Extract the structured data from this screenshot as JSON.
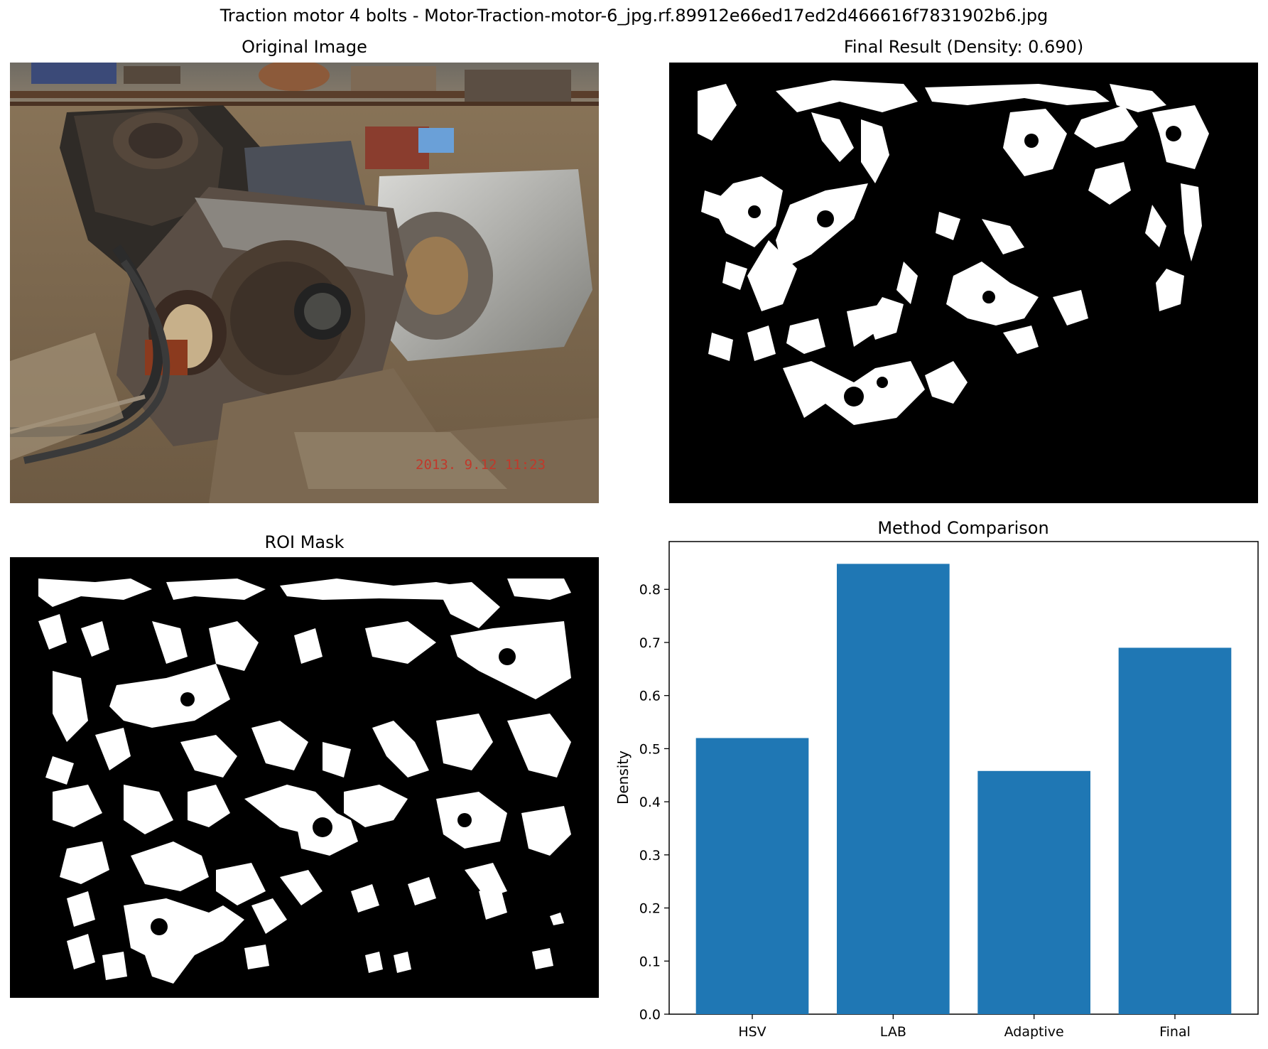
{
  "figure": {
    "suptitle": "Traction motor 4 bolts - Motor-Traction-motor-6_jpg.rf.89912e66ed17ed2d466616f7831902b6.jpg"
  },
  "panels": {
    "original": {
      "title": "Original Image",
      "timestamp": "2013. 9.12  11:23"
    },
    "final": {
      "title": "Final Result (Density: 0.690)"
    },
    "roi": {
      "title": "ROI Mask"
    },
    "comparison": {
      "title": "Method Comparison"
    }
  },
  "colors": {
    "bar": "#1f77b4",
    "mask_bg": "#000000",
    "mask_fg": "#ffffff",
    "timestamp": "#c0392b"
  },
  "chart_data": {
    "type": "bar",
    "title": "Method Comparison",
    "categories": [
      "HSV",
      "LAB",
      "Adaptive",
      "Final"
    ],
    "values": [
      0.52,
      0.848,
      0.458,
      0.69
    ],
    "xlabel": "",
    "ylabel": "Density",
    "ylim": [
      0,
      0.89
    ],
    "yticks": [
      "0.0",
      "0.1",
      "0.2",
      "0.3",
      "0.4",
      "0.5",
      "0.6",
      "0.7",
      "0.8"
    ],
    "grid": false,
    "legend": "none"
  }
}
